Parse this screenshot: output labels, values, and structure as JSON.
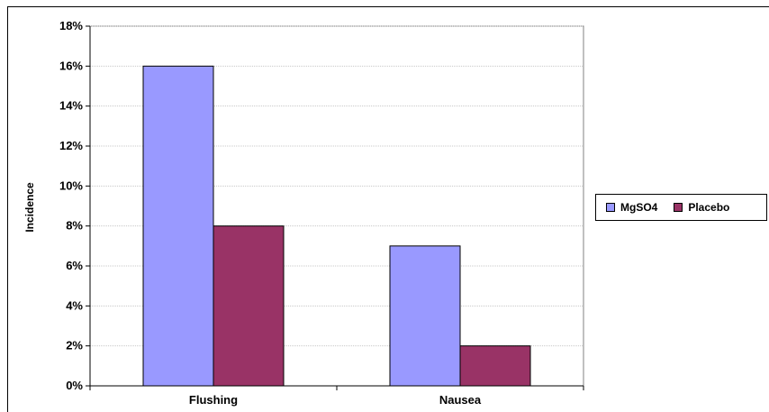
{
  "chart_data": {
    "type": "bar",
    "categories": [
      "Flushing",
      "Nausea"
    ],
    "series": [
      {
        "name": "MgSO4",
        "values": [
          16,
          7
        ],
        "color": "#9999ff"
      },
      {
        "name": "Placebo",
        "values": [
          8,
          2
        ],
        "color": "#993366"
      }
    ],
    "xlabel": "",
    "ylabel": "Incidence",
    "ylim": [
      0,
      18
    ],
    "yticks": [
      0,
      2,
      4,
      6,
      8,
      10,
      12,
      14,
      16,
      18
    ],
    "ytick_labels": [
      "0%",
      "2%",
      "4%",
      "6%",
      "8%",
      "10%",
      "12%",
      "14%",
      "16%",
      "18%"
    ],
    "grid": true,
    "legend_position": "right"
  }
}
